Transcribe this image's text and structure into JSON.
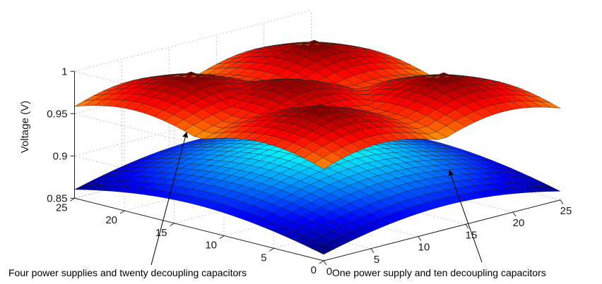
{
  "chart_data": {
    "type": "surface3d",
    "title": "",
    "zlabel": "Voltage (V)",
    "xlim": [
      0,
      25
    ],
    "ylim": [
      0,
      25
    ],
    "zlim": [
      0.85,
      1.0
    ],
    "x_ticks": [
      "0",
      "5",
      "10",
      "15",
      "20",
      "25"
    ],
    "y_ticks": [
      "0",
      "5",
      "10",
      "15",
      "20",
      "25"
    ],
    "z_ticks": [
      "0.85",
      "0.9",
      "0.95",
      "1"
    ],
    "z_tick_values": [
      0.85,
      0.9,
      0.95,
      1.0
    ],
    "grid": true,
    "colormap": "jet",
    "series": [
      {
        "name": "Four power supplies and twenty decoupling capacitors",
        "grid_size": 25,
        "voltage_range": [
          0.925,
          0.995
        ],
        "peaks": [
          {
            "x": 6,
            "y": 6,
            "z": 1.0
          },
          {
            "x": 6,
            "y": 19,
            "z": 1.0
          },
          {
            "x": 19,
            "y": 6,
            "z": 1.0
          },
          {
            "x": 19,
            "y": 19,
            "z": 1.0
          },
          {
            "x": 10,
            "y": 13,
            "z": 0.99
          }
        ]
      },
      {
        "name": "One power supply and ten decoupling capacitors",
        "grid_size": 25,
        "voltage_range": [
          0.855,
          0.915
        ],
        "peaks": [
          {
            "x": 13,
            "y": 13,
            "z": 0.915
          }
        ]
      }
    ],
    "annotations": [
      {
        "text": "Four power supplies and twenty decoupling capacitors",
        "series": 0
      },
      {
        "text": "One power supply and ten decoupling capacitors",
        "series": 1
      }
    ]
  }
}
